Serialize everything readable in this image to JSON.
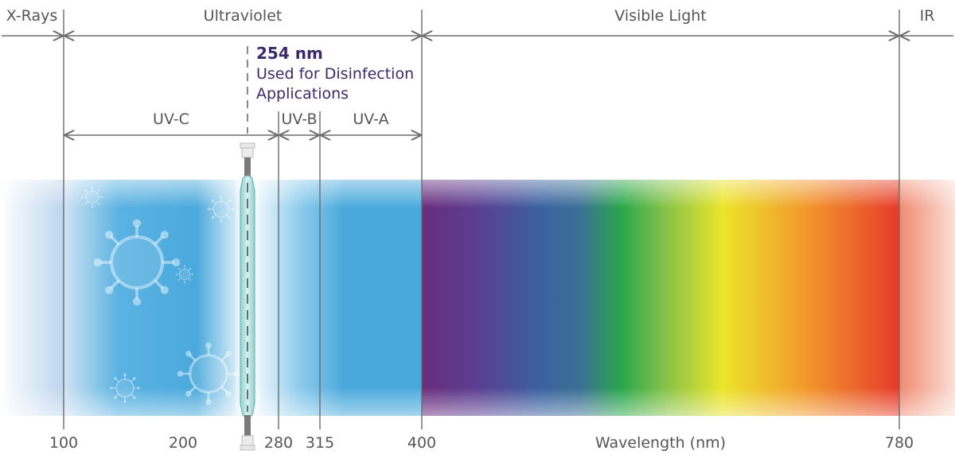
{
  "regions": {
    "xrays": "X-Rays",
    "ultraviolet": "Ultraviolet",
    "visible": "Visible Light",
    "ir": "IR"
  },
  "uv_bands": {
    "uvc": "UV-C",
    "uvb": "UV-B",
    "uva": "UV-A"
  },
  "callout": {
    "title": "254 nm",
    "line1": "Used for Disinfection",
    "line2": "Applications"
  },
  "ticks": [
    "100",
    "200",
    "280",
    "315",
    "400",
    "780"
  ],
  "axis_label": "Wavelength (nm)",
  "colors": {
    "uv_blue": "#4aa9dc",
    "violet": "#6a2c7c",
    "blue": "#3a62a0",
    "green": "#2aa84a",
    "yellow": "#ece52a",
    "orange": "#f39a2c",
    "red": "#e63a2b",
    "ir": "#f08a70",
    "text": "#555555",
    "callout": "#3b2a6b"
  },
  "icons": [
    "virus-icon",
    "uv-lamp-icon"
  ]
}
